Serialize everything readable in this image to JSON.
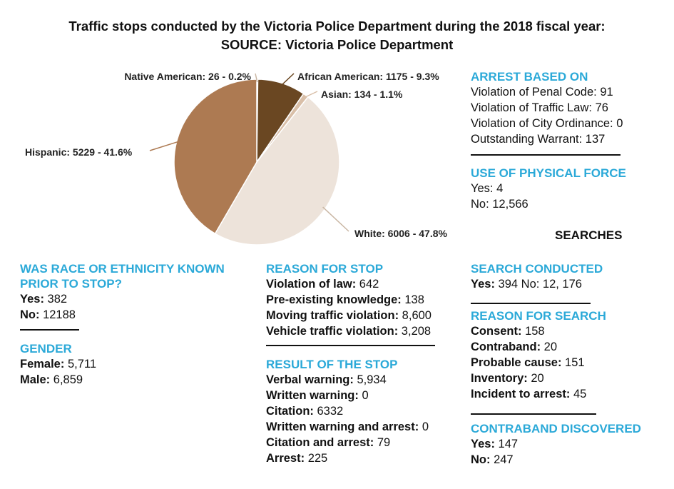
{
  "title": {
    "line1": "Traffic stops conducted by the Victoria Police Department during the 2018 fiscal year:",
    "line2": "SOURCE: Victoria Police Department"
  },
  "chart_data": {
    "type": "pie",
    "slices": [
      {
        "label": "Native American: 26 - 0.2%",
        "value": 26,
        "percent": 0.2,
        "color": "#e6d7c6"
      },
      {
        "label": "African American: 1175 - 9.3%",
        "value": 1175,
        "percent": 9.3,
        "color": "#6a4722"
      },
      {
        "label": "Asian: 134 - 1.1%",
        "value": 134,
        "percent": 1.1,
        "color": "#d9bfa8"
      },
      {
        "label": "White: 6006 - 47.8%",
        "value": 6006,
        "percent": 47.8,
        "color": "#ede3da"
      },
      {
        "label": "Hispanic: 5229 - 41.6%",
        "value": 5229,
        "percent": 41.6,
        "color": "#ad7a52"
      }
    ]
  },
  "race_known": {
    "heading_line1": "WAS RACE OR ETHNICITY KNOWN",
    "heading_line2": "PRIOR TO STOP?",
    "rows": [
      {
        "label": "Yes:",
        "value": " 382"
      },
      {
        "label": "No:",
        "value": " 12188"
      }
    ]
  },
  "gender": {
    "heading": "GENDER",
    "rows": [
      {
        "label": "Female:",
        "value": " 5,711"
      },
      {
        "label": "Male:",
        "value": " 6,859"
      }
    ]
  },
  "reason_for_stop": {
    "heading": "REASON FOR STOP",
    "rows": [
      {
        "label": "Violation of law:",
        "value": " 642"
      },
      {
        "label": "Pre-existing knowledge:",
        "value": " 138"
      },
      {
        "label": "Moving traffic violation:",
        "value": " 8,600"
      },
      {
        "label": "Vehicle traffic violation:",
        "value": " 3,208"
      }
    ]
  },
  "result_of_stop": {
    "heading": "RESULT OF THE STOP",
    "rows": [
      {
        "label": "Verbal warning:",
        "value": " 5,934"
      },
      {
        "label": "Written warning:",
        "value": " 0"
      },
      {
        "label": "Citation:",
        "value": " 6332"
      },
      {
        "label": "Written warning and arrest:",
        "value": " 0"
      },
      {
        "label": "Citation and arrest:",
        "value": " 79"
      },
      {
        "label": "Arrest:",
        "value": " 225"
      }
    ]
  },
  "arrest_based_on": {
    "heading": "ARREST BASED ON",
    "rows": [
      {
        "text": "Violation of Penal Code: 91"
      },
      {
        "text": "Violation of Traffic Law: 76"
      },
      {
        "text": "Violation of City Ordinance: 0"
      },
      {
        "text": "Outstanding Warrant: 137"
      }
    ]
  },
  "physical_force": {
    "heading": "USE OF PHYSICAL FORCE",
    "rows": [
      {
        "text": "Yes: 4"
      },
      {
        "text": "No: 12,566"
      }
    ]
  },
  "searches_label": "SEARCHES",
  "search_conducted": {
    "heading": "SEARCH CONDUCTED",
    "label": "Yes:",
    "value": " 394 No: 12, 176"
  },
  "reason_for_search": {
    "heading": "REASON FOR SEARCH",
    "rows": [
      {
        "label": "Consent:",
        "value": " 158"
      },
      {
        "label": "Contraband:",
        "value": " 20"
      },
      {
        "label": "Probable cause:",
        "value": " 151"
      },
      {
        "label": "Inventory:",
        "value": " 20"
      },
      {
        "label": "Incident to arrest:",
        "value": " 45"
      }
    ]
  },
  "contraband": {
    "heading": "CONTRABAND DISCOVERED",
    "rows": [
      {
        "label": "Yes:",
        "value": " 147"
      },
      {
        "label": "No:",
        "value": " 247"
      }
    ]
  }
}
